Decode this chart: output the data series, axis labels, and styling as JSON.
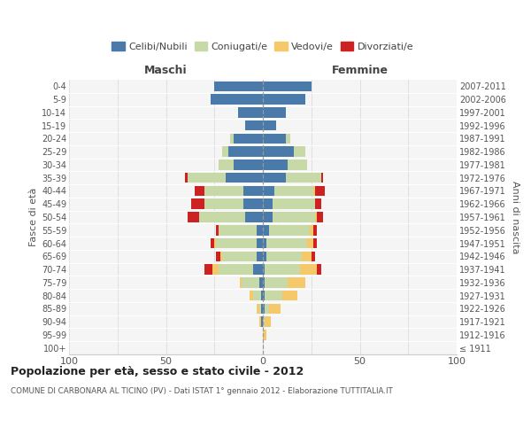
{
  "age_groups": [
    "100+",
    "95-99",
    "90-94",
    "85-89",
    "80-84",
    "75-79",
    "70-74",
    "65-69",
    "60-64",
    "55-59",
    "50-54",
    "45-49",
    "40-44",
    "35-39",
    "30-34",
    "25-29",
    "20-24",
    "15-19",
    "10-14",
    "5-9",
    "0-4"
  ],
  "birth_years": [
    "≤ 1911",
    "1912-1916",
    "1917-1921",
    "1922-1926",
    "1927-1931",
    "1932-1936",
    "1937-1941",
    "1942-1946",
    "1947-1951",
    "1952-1956",
    "1957-1961",
    "1962-1966",
    "1967-1971",
    "1972-1976",
    "1977-1981",
    "1982-1986",
    "1987-1991",
    "1992-1996",
    "1997-2001",
    "2002-2006",
    "2007-2011"
  ],
  "colors": {
    "celibi": "#4a7aaa",
    "coniugati": "#c8d9a8",
    "vedovi": "#f5c96a",
    "divorziati": "#cc2222"
  },
  "males": {
    "celibi": [
      0,
      0,
      1,
      1,
      1,
      2,
      5,
      3,
      3,
      3,
      9,
      10,
      10,
      19,
      15,
      18,
      15,
      9,
      13,
      27,
      25
    ],
    "coniugati": [
      0,
      0,
      0,
      1,
      4,
      9,
      18,
      18,
      21,
      20,
      24,
      20,
      20,
      20,
      8,
      3,
      2,
      0,
      0,
      0,
      0
    ],
    "vedovi": [
      0,
      0,
      1,
      1,
      2,
      1,
      3,
      1,
      1,
      0,
      0,
      0,
      0,
      0,
      0,
      0,
      0,
      0,
      0,
      0,
      0
    ],
    "divorziati": [
      0,
      0,
      0,
      0,
      0,
      0,
      4,
      2,
      2,
      1,
      6,
      7,
      5,
      1,
      0,
      0,
      0,
      0,
      0,
      0,
      0
    ]
  },
  "females": {
    "celibi": [
      0,
      0,
      0,
      1,
      1,
      1,
      1,
      2,
      2,
      3,
      5,
      5,
      6,
      12,
      13,
      16,
      12,
      7,
      12,
      22,
      25
    ],
    "coniugati": [
      0,
      0,
      1,
      2,
      9,
      12,
      18,
      18,
      21,
      21,
      22,
      22,
      20,
      18,
      10,
      6,
      2,
      0,
      0,
      0,
      0
    ],
    "vedovi": [
      0,
      2,
      3,
      6,
      8,
      9,
      9,
      5,
      3,
      2,
      1,
      0,
      1,
      0,
      0,
      0,
      0,
      0,
      0,
      0,
      0
    ],
    "divorziati": [
      0,
      0,
      0,
      0,
      0,
      0,
      2,
      2,
      2,
      2,
      3,
      3,
      5,
      1,
      0,
      0,
      0,
      0,
      0,
      0,
      0
    ]
  },
  "xlim": 100,
  "title": "Popolazione per età, sesso e stato civile - 2012",
  "subtitle": "COMUNE DI CARBONARA AL TICINO (PV) - Dati ISTAT 1° gennaio 2012 - Elaborazione TUTTITALIA.IT",
  "legend_labels": [
    "Celibi/Nubili",
    "Coniugati/e",
    "Vedovi/e",
    "Divorziati/e"
  ],
  "ylabel_left": "Fasce di età",
  "ylabel_right": "Anni di nascita",
  "bg_color": "#f5f5f5",
  "fig_color": "#ffffff",
  "grid_color": "#dddddd",
  "spine_color": "#cccccc",
  "text_color": "#555555",
  "header_color": "#444444",
  "title_color": "#222222"
}
